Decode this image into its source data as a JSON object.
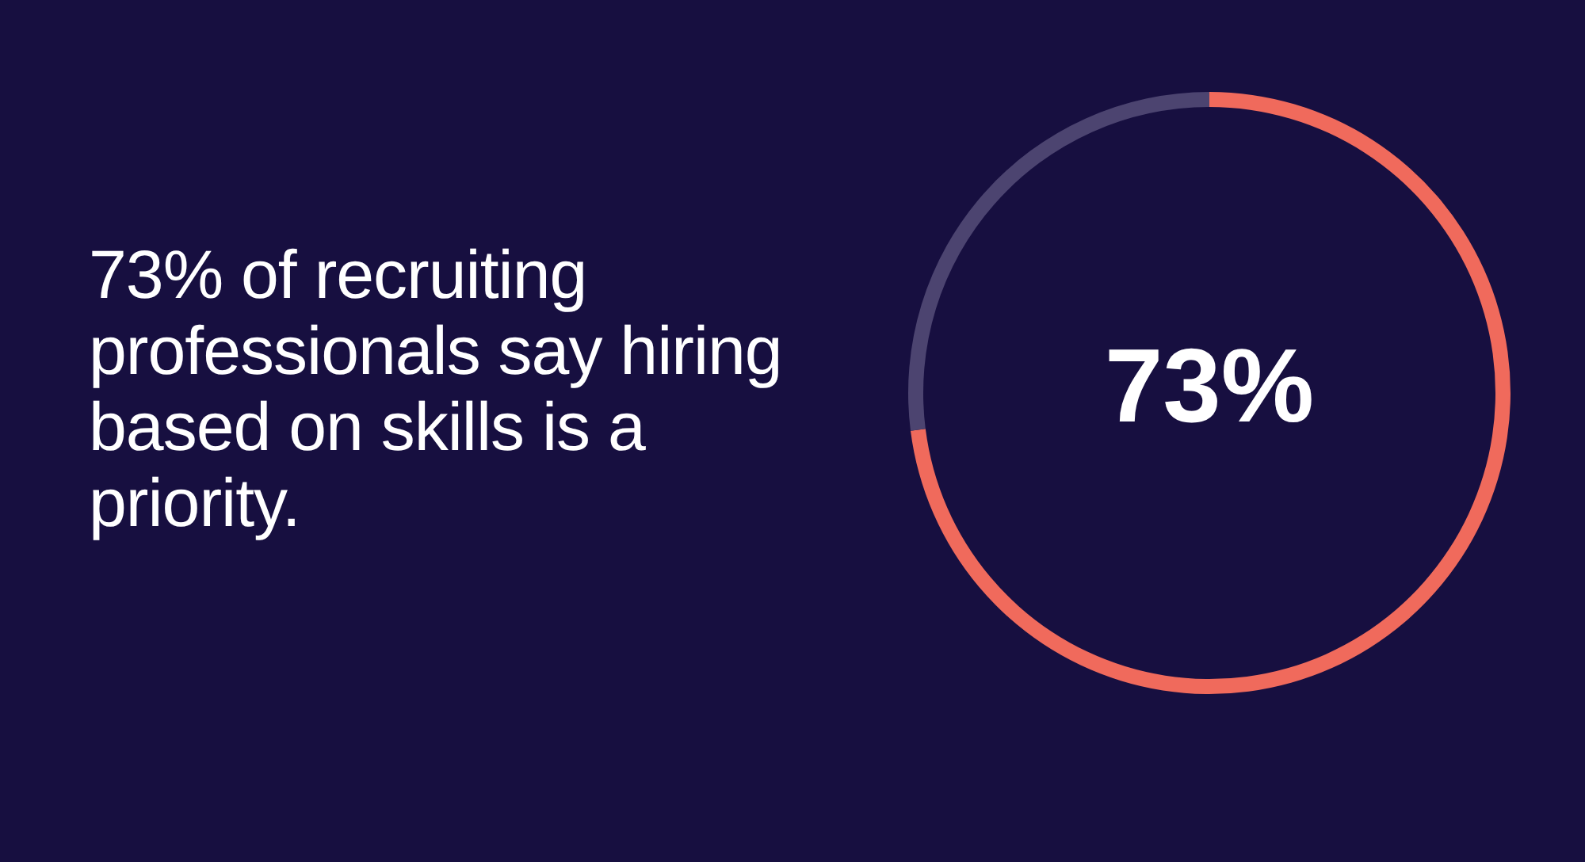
{
  "chart_data": {
    "type": "donut",
    "title": "73% of recruiting professionals say hiring based on skills is a priority.",
    "categories": [
      null,
      null
    ],
    "values": [
      73,
      27
    ],
    "colors": [
      "#f06a5c",
      "#4c4470"
    ],
    "value_labels": [
      "73%",
      null
    ],
    "legend": false
  }
}
